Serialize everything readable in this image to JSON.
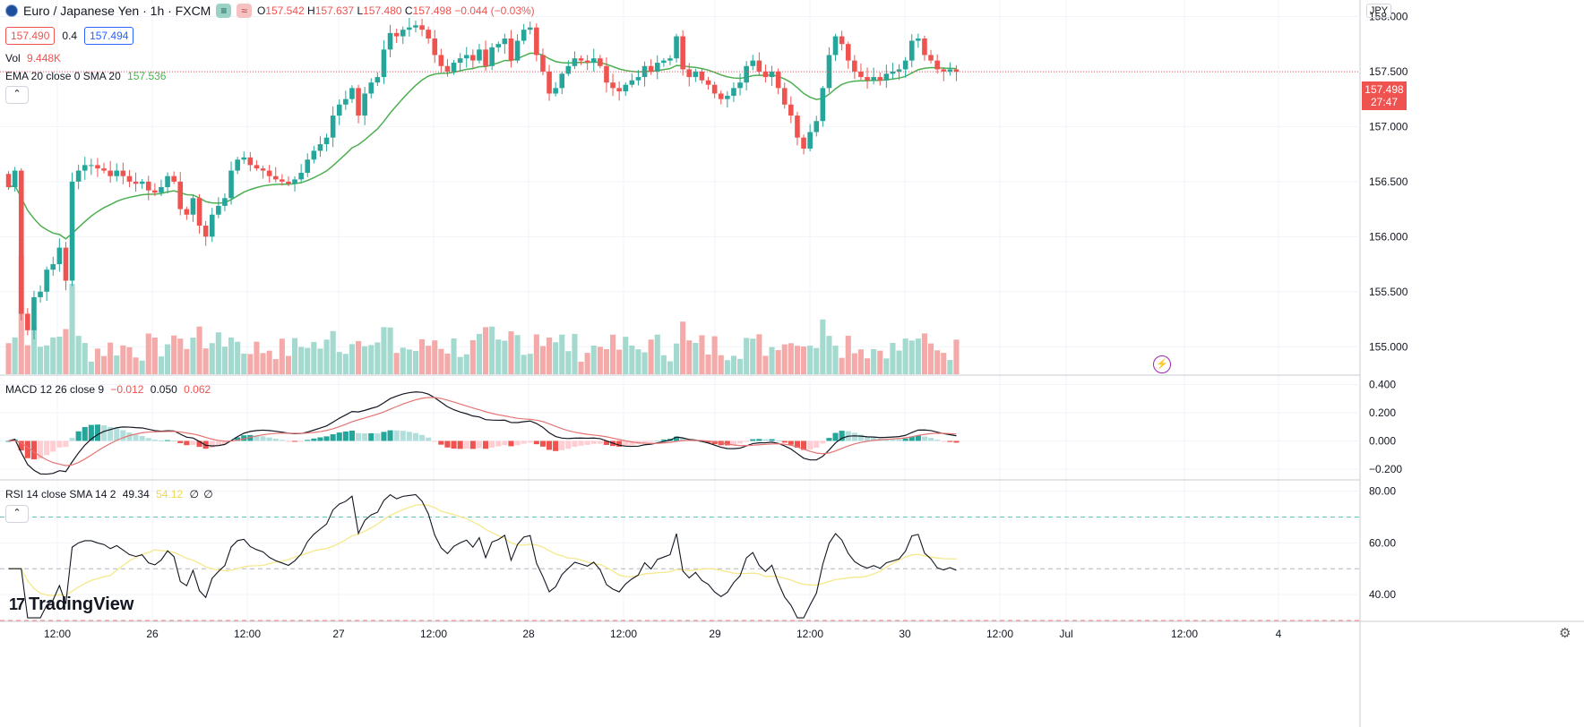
{
  "header": {
    "symbol_icon": "globe-icon",
    "title": "Euro / Japanese Yen · 1h · FXCM",
    "badge_green": "≡",
    "badge_red": "≈",
    "ohlc": {
      "o_label": "O",
      "o": "157.542",
      "h_label": "H",
      "h": "157.637",
      "l_label": "L",
      "l": "157.480",
      "c_label": "C",
      "c": "157.498",
      "change": "−0.044 (−0.03%)"
    },
    "bid": "157.490",
    "spread": "0.4",
    "ask": "157.494",
    "vol_label": "Vol",
    "vol_value": "9.448K",
    "ema_label": "EMA 20 close 0 SMA 20",
    "ema_value": "157.536",
    "currency": "JPY",
    "collapse_icon": "chevron-up-icon"
  },
  "price_tag": {
    "price": "157.498",
    "countdown": "27:47"
  },
  "macd_legend": {
    "label": "MACD 12 26 close 9",
    "hist": "−0.012",
    "macd": "0.050",
    "signal": "0.062"
  },
  "rsi_legend": {
    "label": "RSI 14 close SMA 14 2",
    "rsi": "49.34",
    "sma": "54.12",
    "z1": "∅",
    "z2": "∅"
  },
  "logo_text": "TradingView",
  "colors": {
    "up": "#26a69a",
    "down": "#ef5350",
    "ema": "#4caf50",
    "macd": "#131722",
    "signal": "#e57373",
    "rsi": "#131722",
    "rsi_sma": "#f5e88a"
  },
  "chart_data": [
    {
      "type": "candlestick",
      "title": "Euro / Japanese Yen · 1h · FXCM",
      "ylim": [
        154.75,
        158.15
      ],
      "y_ticks": [
        "158.000",
        "157.500",
        "157.000",
        "156.500",
        "156.000",
        "155.500",
        "155.000"
      ],
      "x_ticks": [
        "12:00",
        "26",
        "12:00",
        "27",
        "12:00",
        "28",
        "12:00",
        "29",
        "12:00",
        "30",
        "12:00",
        "Jul",
        "12:00",
        "4"
      ],
      "closes": [
        156.45,
        156.6,
        155.3,
        155.15,
        155.45,
        155.5,
        155.7,
        155.75,
        155.9,
        155.6,
        156.5,
        156.6,
        156.65,
        156.65,
        156.62,
        156.6,
        156.55,
        156.6,
        156.55,
        156.5,
        156.48,
        156.5,
        156.42,
        156.4,
        156.45,
        156.55,
        156.5,
        156.25,
        156.2,
        156.35,
        156.1,
        156.0,
        156.2,
        156.28,
        156.35,
        156.6,
        156.7,
        156.72,
        156.65,
        156.62,
        156.6,
        156.55,
        156.52,
        156.5,
        156.48,
        156.52,
        156.58,
        156.7,
        156.78,
        156.84,
        156.9,
        157.1,
        157.2,
        157.25,
        157.35,
        157.1,
        157.3,
        157.4,
        157.45,
        157.7,
        157.85,
        157.82,
        157.88,
        157.9,
        157.92,
        157.88,
        157.8,
        157.65,
        157.55,
        157.5,
        157.58,
        157.62,
        157.65,
        157.6,
        157.7,
        157.55,
        157.72,
        157.75,
        157.8,
        157.6,
        157.78,
        157.88,
        157.9,
        157.65,
        157.5,
        157.3,
        157.35,
        157.48,
        157.55,
        157.62,
        157.6,
        157.58,
        157.62,
        157.55,
        157.4,
        157.35,
        157.32,
        157.38,
        157.42,
        157.45,
        157.55,
        157.5,
        157.58,
        157.6,
        157.62,
        157.82,
        157.52,
        157.45,
        157.5,
        157.42,
        157.38,
        157.3,
        157.25,
        157.28,
        157.35,
        157.4,
        157.55,
        157.6,
        157.5,
        157.45,
        157.5,
        157.35,
        157.2,
        157.1,
        156.9,
        156.8,
        156.95,
        157.05,
        157.35,
        157.65,
        157.82,
        157.75,
        157.6,
        157.5,
        157.45,
        157.42,
        157.45,
        157.42,
        157.48,
        157.5,
        157.52,
        157.6,
        157.78,
        157.8,
        157.65,
        157.6,
        157.52,
        157.5,
        157.52,
        157.498
      ],
      "volume_note": "Vol 9.448K"
    },
    {
      "type": "line",
      "title": "MACD 12 26 close 9",
      "ylim": [
        -0.27,
        0.46
      ],
      "y_ticks": [
        "0.400",
        "0.200",
        "0.000",
        "−0.200"
      ]
    },
    {
      "type": "line",
      "title": "RSI 14 close SMA 14 2",
      "ylim": [
        30,
        84
      ],
      "y_ticks": [
        "80.00",
        "60.00",
        "40.00"
      ],
      "levels": [
        70,
        50,
        30
      ]
    }
  ]
}
